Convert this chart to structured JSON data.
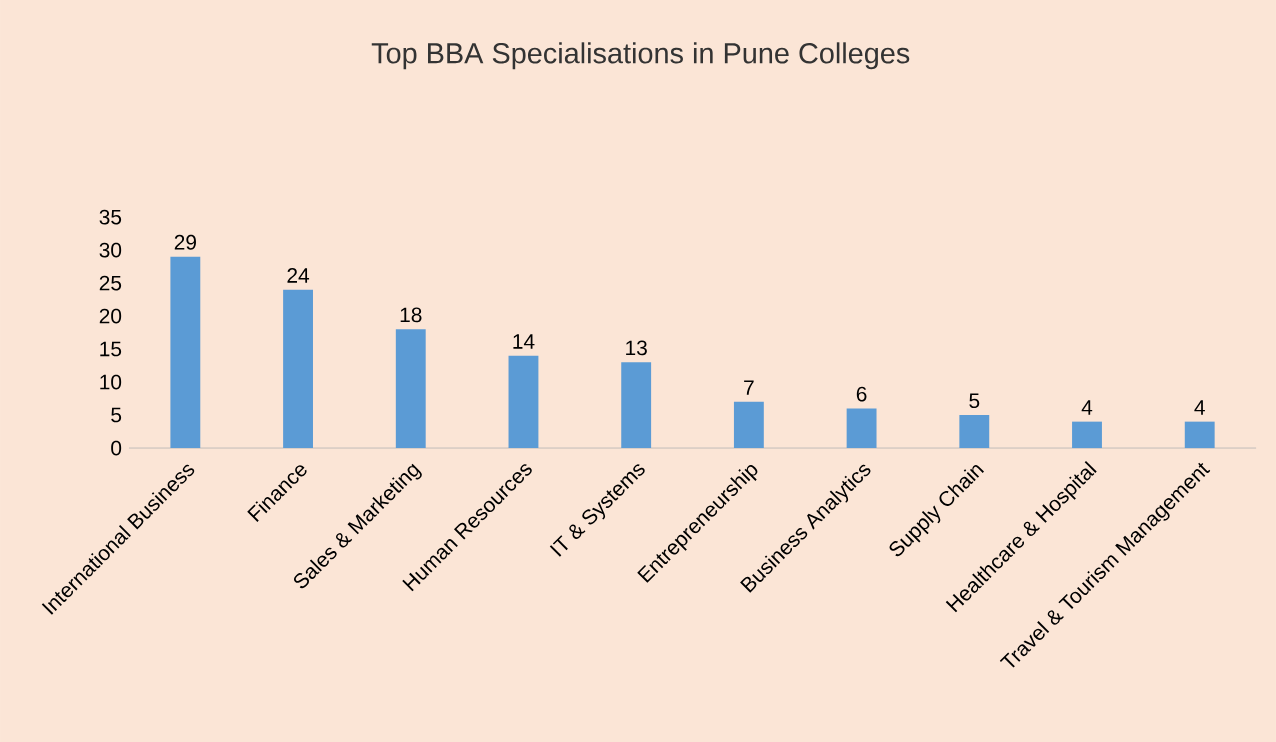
{
  "chart_data": {
    "type": "bar",
    "title": "Top BBA Specialisations in Pune Colleges",
    "categories": [
      "International Business",
      "Finance",
      "Sales & Marketing",
      "Human Resources",
      "IT & Systems",
      "Entrepreneurship",
      "Business Analytics",
      "Supply Chain",
      "Healthcare & Hospital",
      "Travel & Tourism Management"
    ],
    "values": [
      29,
      24,
      18,
      14,
      13,
      7,
      6,
      5,
      4,
      4
    ],
    "color": "#5b9bd5",
    "ylim": [
      0,
      35
    ],
    "yticks": [
      0,
      5,
      10,
      15,
      20,
      25,
      30,
      35
    ],
    "data_labels": true
  }
}
